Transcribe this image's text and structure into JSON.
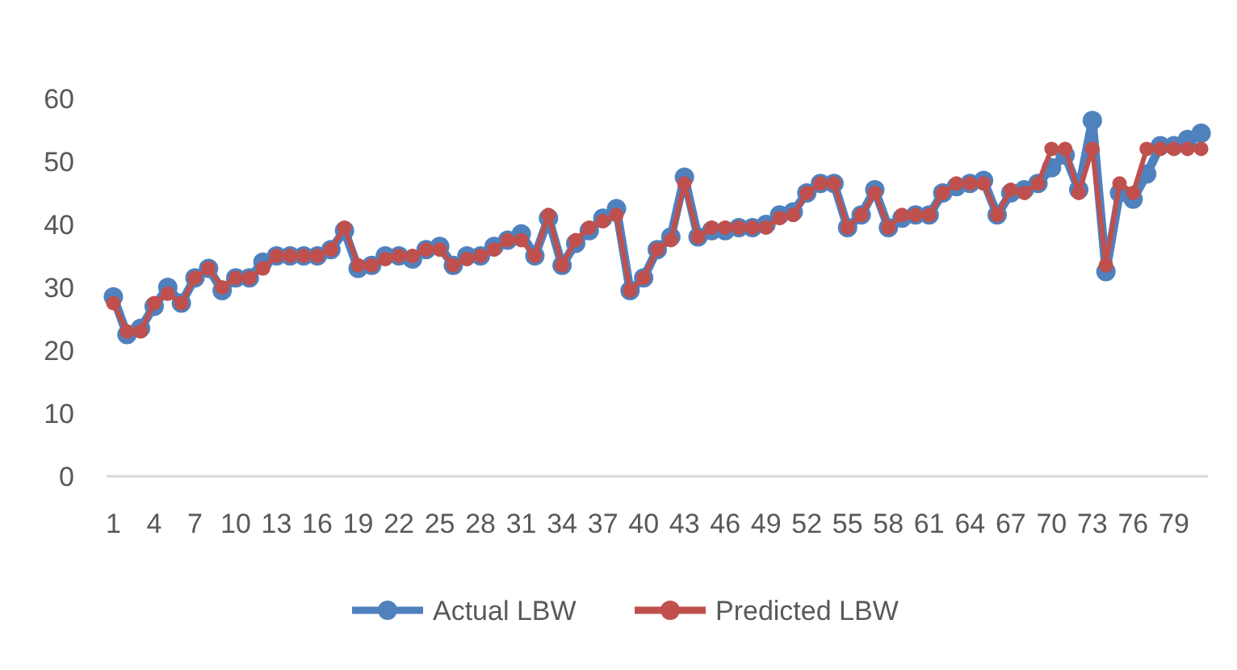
{
  "chart_data": {
    "type": "line",
    "categories": [
      "1",
      null,
      null,
      "4",
      null,
      null,
      "7",
      null,
      null,
      "10",
      null,
      null,
      "13",
      null,
      null,
      "16",
      null,
      null,
      "19",
      null,
      null,
      "22",
      null,
      null,
      "25",
      null,
      null,
      "28",
      null,
      null,
      "31",
      null,
      null,
      "34",
      null,
      null,
      "37",
      null,
      null,
      "40",
      null,
      null,
      "43",
      null,
      null,
      "46",
      null,
      null,
      "49",
      null,
      null,
      "52",
      null,
      null,
      "55",
      null,
      null,
      "58",
      null,
      null,
      "61",
      null,
      null,
      "64",
      null,
      null,
      "67",
      null,
      null,
      "70",
      null,
      null,
      "73",
      null,
      null,
      "76",
      null,
      null,
      "79",
      null,
      null
    ],
    "series": [
      {
        "name": "Actual LBW",
        "color": "#4f81bd",
        "values": [
          28.5,
          22.5,
          23.5,
          27,
          30,
          27.5,
          31.5,
          33,
          29.5,
          31.5,
          31.5,
          34,
          35,
          35,
          35,
          35,
          36,
          39,
          33,
          33.5,
          35,
          35,
          34.5,
          36,
          36.5,
          33.5,
          35,
          35,
          36.5,
          37.5,
          38.5,
          35,
          41,
          33.5,
          37,
          39,
          41,
          42.5,
          29.5,
          31.5,
          36,
          38,
          47.5,
          38,
          39,
          39,
          39.5,
          39.5,
          40,
          41.5,
          42,
          45,
          46.5,
          46.5,
          39.5,
          41.5,
          45.5,
          39.5,
          41,
          41.5,
          41.5,
          45,
          46,
          46.5,
          47,
          41.5,
          45,
          45.5,
          46.5,
          49,
          51,
          45.5,
          56.5,
          32.5,
          45,
          44,
          48,
          52.5,
          52.5,
          53.5,
          54.5
        ]
      },
      {
        "name": "Predicted LBW",
        "color": "#c0504d",
        "values": [
          27.5,
          23,
          23,
          27.5,
          29,
          27.5,
          31.5,
          33,
          30,
          31.5,
          31.5,
          33,
          35,
          35,
          35,
          35,
          36,
          39.5,
          33.5,
          33.5,
          34.5,
          35,
          35,
          36,
          36,
          33.5,
          34.5,
          35,
          36,
          37.5,
          37.5,
          35,
          41.5,
          33.5,
          37.5,
          39.5,
          40.5,
          41.5,
          29.5,
          31.5,
          36,
          37.5,
          46.5,
          38,
          39.5,
          39.5,
          39.5,
          39.5,
          39.5,
          41,
          41.5,
          45,
          46.5,
          46.5,
          39.5,
          41.5,
          45,
          39.5,
          41.5,
          41.5,
          41.5,
          45,
          46.5,
          46.5,
          46.5,
          41.5,
          45.5,
          45,
          46.5,
          52,
          52,
          45,
          52,
          33.5,
          46.5,
          45,
          52,
          52,
          52,
          52,
          52
        ]
      }
    ],
    "ylim": [
      0,
      60
    ],
    "yticks": [
      0,
      10,
      20,
      30,
      40,
      50,
      60
    ],
    "legend": "bottom",
    "marker": "circle",
    "line_style": "solid"
  }
}
